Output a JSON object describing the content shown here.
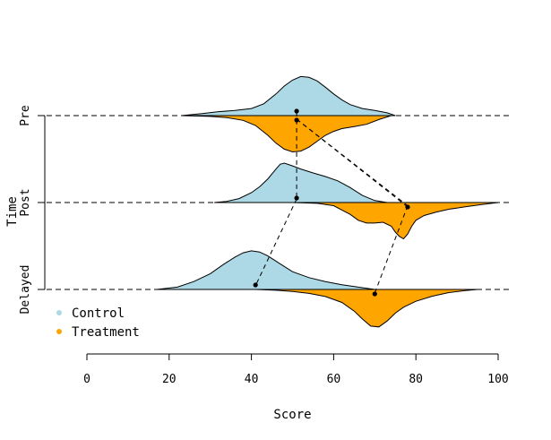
{
  "chart_data": {
    "type": "split-violin",
    "title": "",
    "xlabel": "Score",
    "ylabel": "Time",
    "xlim": [
      0,
      100
    ],
    "x_ticks": [
      0,
      20,
      40,
      60,
      80,
      100
    ],
    "x_tick_labels": [
      "0",
      "20",
      "40",
      "60",
      "80",
      "100"
    ],
    "categories": [
      "Pre",
      "Post",
      "Delayed"
    ],
    "legend": {
      "placement": "bottom-left",
      "entries": [
        {
          "label": "Control",
          "color": "#add8e6"
        },
        {
          "label": "Treatment",
          "color": "#ffa500"
        }
      ]
    },
    "series": [
      {
        "name": "Control",
        "color": "#add8e6",
        "side": "up",
        "means": [
          51,
          51,
          41
        ],
        "density": [
          {
            "category": "Pre",
            "x": [
              23,
              28,
              32,
              36,
              40,
              43,
              46,
              48,
              50,
              52,
              54,
              56,
              58,
              60,
              62,
              64,
              67,
              70,
              73,
              75
            ],
            "y": [
              0,
              0.05,
              0.1,
              0.13,
              0.18,
              0.3,
              0.55,
              0.75,
              0.9,
              0.99,
              0.97,
              0.88,
              0.72,
              0.55,
              0.4,
              0.28,
              0.18,
              0.13,
              0.07,
              0
            ]
          },
          {
            "category": "Post",
            "x": [
              31,
              34,
              37,
              40,
              42,
              44,
              46,
              47,
              48,
              50,
              52,
              55,
              58,
              61,
              64,
              67,
              70,
              73
            ],
            "y": [
              0,
              0.03,
              0.1,
              0.25,
              0.4,
              0.6,
              0.85,
              0.97,
              1.0,
              0.93,
              0.85,
              0.75,
              0.66,
              0.55,
              0.38,
              0.18,
              0.05,
              0
            ]
          },
          {
            "category": "Delayed",
            "x": [
              17,
              22,
              26,
              30,
              33,
              36,
              38,
              40,
              42,
              44,
              47,
              50,
              54,
              58,
              62,
              66,
              70
            ],
            "y": [
              0,
              0.06,
              0.2,
              0.4,
              0.62,
              0.82,
              0.93,
              0.98,
              0.95,
              0.85,
              0.65,
              0.45,
              0.3,
              0.2,
              0.12,
              0.06,
              0
            ]
          }
        ]
      },
      {
        "name": "Treatment",
        "color": "#ffa500",
        "side": "down",
        "means": [
          51,
          78,
          70
        ],
        "density": [
          {
            "category": "Pre",
            "x": [
              23,
              30,
              34,
              38,
              41,
              44,
              46,
              48,
              50,
              52,
              54,
              56,
              58,
              60,
              62,
              65,
              68,
              71,
              74
            ],
            "y": [
              0,
              0.02,
              0.05,
              0.12,
              0.25,
              0.5,
              0.7,
              0.85,
              0.92,
              0.9,
              0.8,
              0.65,
              0.5,
              0.4,
              0.33,
              0.28,
              0.22,
              0.1,
              0
            ]
          },
          {
            "category": "Post",
            "x": [
              50,
              56,
              60,
              64,
              66,
              68,
              70,
              72,
              74,
              75,
              76,
              77,
              78,
              79,
              80,
              82,
              85,
              88,
              92,
              96,
              100
            ],
            "y": [
              0,
              0.02,
              0.08,
              0.3,
              0.45,
              0.52,
              0.52,
              0.5,
              0.6,
              0.75,
              0.86,
              0.92,
              0.8,
              0.6,
              0.45,
              0.33,
              0.24,
              0.17,
              0.11,
              0.05,
              0
            ]
          },
          {
            "category": "Delayed",
            "x": [
              41,
              46,
              50,
              54,
              58,
              62,
              65,
              67,
              69,
              71,
              73,
              75,
              77,
              80,
              84,
              88,
              92,
              95
            ],
            "y": [
              0,
              0.02,
              0.05,
              0.1,
              0.18,
              0.33,
              0.55,
              0.75,
              0.93,
              0.95,
              0.8,
              0.6,
              0.45,
              0.3,
              0.17,
              0.08,
              0.03,
              0
            ]
          }
        ]
      }
    ]
  }
}
